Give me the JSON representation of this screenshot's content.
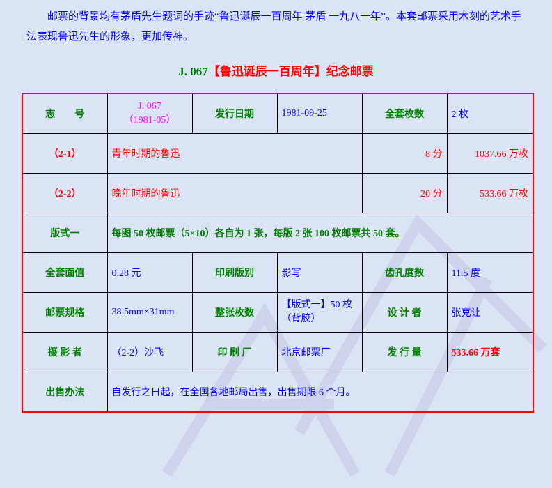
{
  "intro_text": "邮票的背景均有茅盾先生题词的手迹“鲁迅诞辰一百周年 茅盾 一九八一年”。本套邮票采用木刻的艺术手法表现鲁迅先生的形象，更加传神。",
  "title": {
    "code": "J. 067",
    "name": "【鲁迅诞辰一百周年】纪念邮票"
  },
  "table": {
    "zhihao_label": "志　　号",
    "zhihao_value_1": "J. 067",
    "zhihao_value_2": "（1981-05）",
    "issue_date_label": "发行日期",
    "issue_date_value": "1981-09-25",
    "set_count_label": "全套枚数",
    "set_count_value": "2 枚",
    "stamps": [
      {
        "no": "（2-1）",
        "name": "青年时期的鲁迅",
        "face": "8 分",
        "qty": "1037.66 万枚"
      },
      {
        "no": "（2-2）",
        "name": "晚年时期的鲁迅",
        "face": "20 分",
        "qty": "533.66 万枚"
      }
    ],
    "format_label": "版式一",
    "format_value": "每图 50 枚邮票（5×10）各自为 1 张，每版 2 张 100 枚邮票共 50 套。",
    "face_total_label": "全套面值",
    "face_total_value": "0.28 元",
    "print_type_label": "印刷版别",
    "print_type_value": "影写",
    "perf_label": "齿孔度数",
    "perf_value": "11.5 度",
    "size_label": "邮票规格",
    "size_value": "38.5mm×31mm",
    "sheet_label": "整张枚数",
    "sheet_value_1": "【版式一】50 枚",
    "sheet_value_2": "（背胶）",
    "designer_label": "设 计 者",
    "designer_value": "张克让",
    "photographer_label": "摄 影 者",
    "photographer_value": "（2-2）沙飞",
    "printer_label": "印 刷 厂",
    "printer_value": "北京邮票厂",
    "circulation_label": "发 行 量",
    "circulation_value": "533.66 万套",
    "sale_label": "出售办法",
    "sale_value": "自发行之日起，在全国各地邮局出售，出售期限 6 个月。"
  },
  "colors": {
    "background": "#dbe4f4",
    "label": "#008000",
    "value": "#0000ff",
    "accent": "#ff0000",
    "code": "#ff00ff"
  }
}
